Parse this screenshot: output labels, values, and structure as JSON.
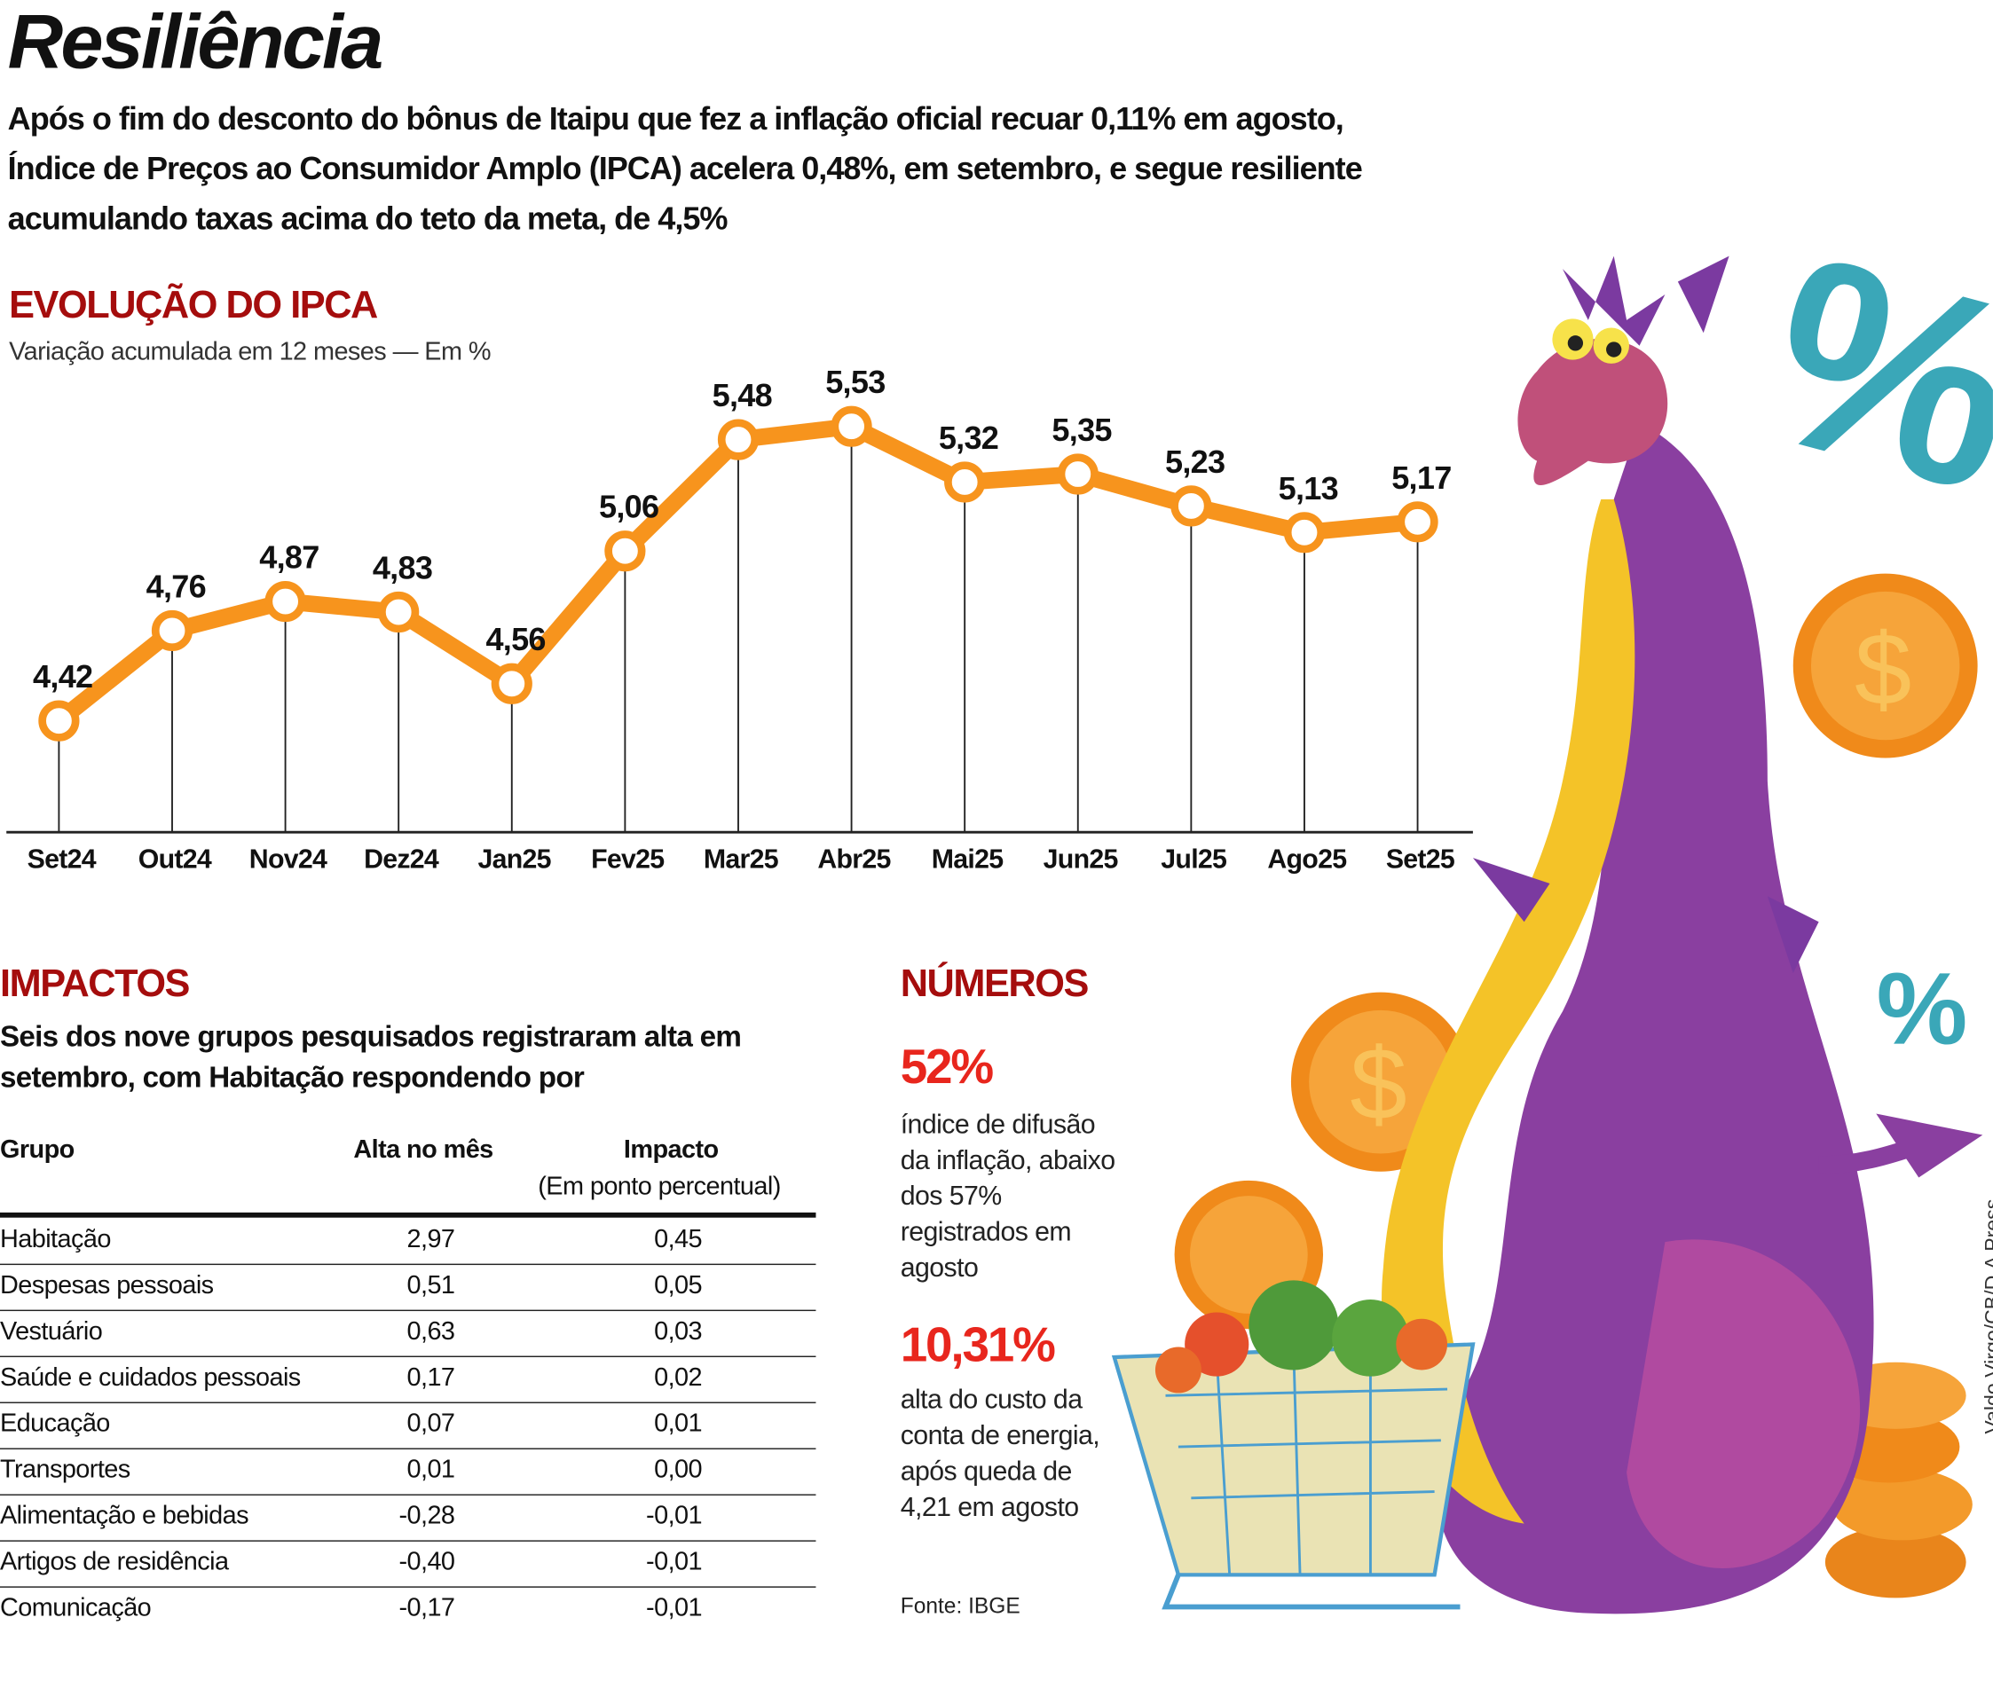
{
  "title": "Resiliência",
  "lede": "Após o fim do desconto do bônus de Itaipu que fez a inflação oficial recuar 0,11% em agosto, Índice de Preços ao Consumidor Amplo (IPCA) acelera 0,48%, em setembro, e segue resiliente acumulando taxas acima do teto da meta, de 4,5%",
  "chart_data": {
    "type": "line",
    "title": "EVOLUÇÃO DO IPCA",
    "subtitle": "Variação acumulada em 12 meses — Em %",
    "categories": [
      "Set24",
      "Out24",
      "Nov24",
      "Dez24",
      "Jan25",
      "Fev25",
      "Mar25",
      "Abr25",
      "Mai25",
      "Jun25",
      "Jul25",
      "Ago25",
      "Set25"
    ],
    "values": [
      4.42,
      4.76,
      4.87,
      4.83,
      4.56,
      5.06,
      5.48,
      5.53,
      5.32,
      5.35,
      5.23,
      5.13,
      5.17
    ],
    "labels": [
      "4,42",
      "4,76",
      "4,87",
      "4,83",
      "4,56",
      "5,06",
      "5,48",
      "5,53",
      "5,32",
      "5,35",
      "5,23",
      "5,13",
      "5,17"
    ],
    "line_color": "#f7941d",
    "grid": false
  },
  "impactos": {
    "title": "IMPACTOS",
    "description": "Seis dos nove grupos pesquisados registraram alta em setembro, com Habitação respondendo por",
    "headers": {
      "grupo": "Grupo",
      "alta": "Alta no mês",
      "impacto": "Impacto",
      "impacto_sub": "(Em ponto percentual)"
    },
    "rows": [
      {
        "grupo": "Habitação",
        "alta": "2,97",
        "impacto": "0,45"
      },
      {
        "grupo": "Despesas pessoais",
        "alta": "0,51",
        "impacto": "0,05"
      },
      {
        "grupo": "Vestuário",
        "alta": "0,63",
        "impacto": "0,03"
      },
      {
        "grupo": "Saúde e cuidados pessoais",
        "alta": "0,17",
        "impacto": "0,02"
      },
      {
        "grupo": "Educação",
        "alta": "0,07",
        "impacto": "0,01"
      },
      {
        "grupo": "Transportes",
        "alta": "0,01",
        "impacto": "0,00"
      },
      {
        "grupo": "Alimentação e bebidas",
        "alta": "-0,28",
        "impacto": "-0,01"
      },
      {
        "grupo": "Artigos de residência",
        "alta": "-0,40",
        "impacto": "-0,01"
      },
      {
        "grupo": "Comunicação",
        "alta": "-0,17",
        "impacto": "-0,01"
      }
    ]
  },
  "numeros": {
    "title": "NÚMEROS",
    "items": [
      {
        "value": "52%",
        "text": "índice de difusão da inflação, abaixo dos 57% registrados em agosto"
      },
      {
        "value": "10,31%",
        "text": "alta do custo da conta de energia, após queda de 4,21 em agosto"
      }
    ]
  },
  "source": "Fonte: IBGE",
  "credit": "Valdo Virgo/CB/D.A Press",
  "illustration": {
    "percent_1": "%",
    "percent_2": "%",
    "coin_symbol": "$"
  },
  "colors": {
    "section_title": "#a50d0d",
    "highlight": "#e8261d",
    "line": "#f7941d"
  }
}
